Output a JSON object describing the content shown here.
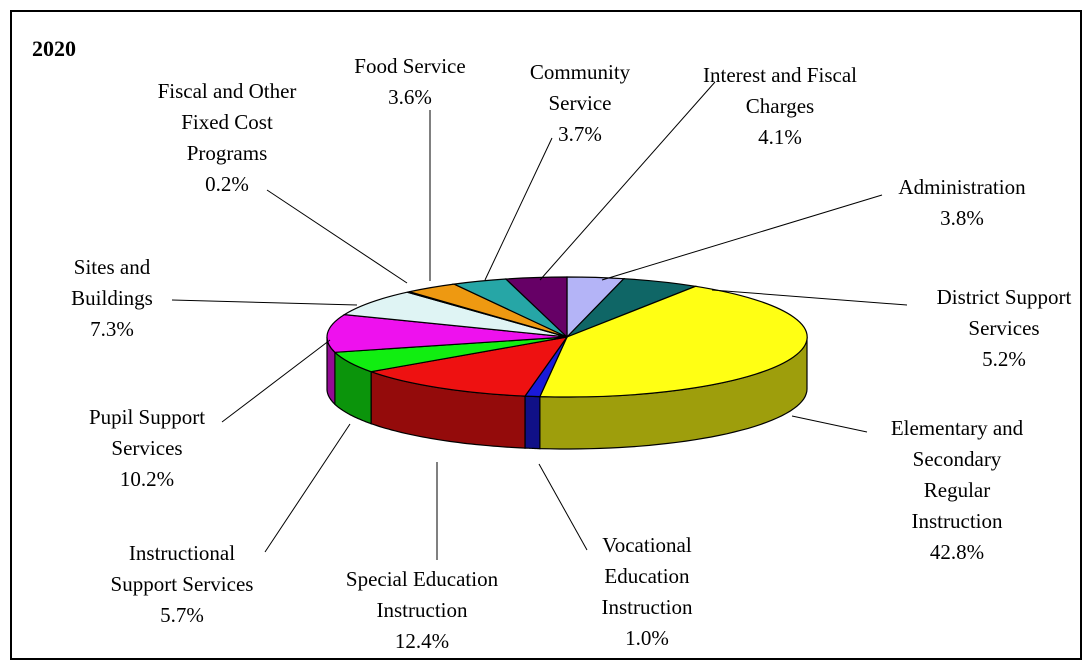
{
  "chart_data": {
    "type": "pie",
    "title": "2020",
    "three_d": true,
    "legend": "none",
    "slices": [
      {
        "label": "Administration",
        "value": 3.8,
        "display": "3.8%",
        "color": "#b4b4f7"
      },
      {
        "label": "District Support Services",
        "value": 5.2,
        "display": "5.2%",
        "color": "#0f6666"
      },
      {
        "label": "Elementary and Secondary Regular Instruction",
        "value": 42.8,
        "display": "42.8%",
        "color": "#ffff14"
      },
      {
        "label": "Vocational Education Instruction",
        "value": 1.0,
        "display": "1.0%",
        "color": "#1a1ad9"
      },
      {
        "label": "Special Education Instruction",
        "value": 12.4,
        "display": "12.4%",
        "color": "#ee1111"
      },
      {
        "label": "Instructional Support Services",
        "value": 5.7,
        "display": "5.7%",
        "color": "#11ee11"
      },
      {
        "label": "Pupil Support Services",
        "value": 10.2,
        "display": "10.2%",
        "color": "#ee11ee"
      },
      {
        "label": "Sites and Buildings",
        "value": 7.3,
        "display": "7.3%",
        "color": "#dff4f4"
      },
      {
        "label": "Fiscal and Other Fixed Cost Programs",
        "value": 0.2,
        "display": "0.2%",
        "color": "#c0c0c0"
      },
      {
        "label": "Food Service",
        "value": 3.6,
        "display": "3.6%",
        "color": "#ee9911"
      },
      {
        "label": "Community Service",
        "value": 3.7,
        "display": "3.7%",
        "color": "#26a6a6"
      },
      {
        "label": "Interest and Fiscal Charges",
        "value": 4.1,
        "display": "4.1%",
        "color": "#660066"
      }
    ]
  }
}
